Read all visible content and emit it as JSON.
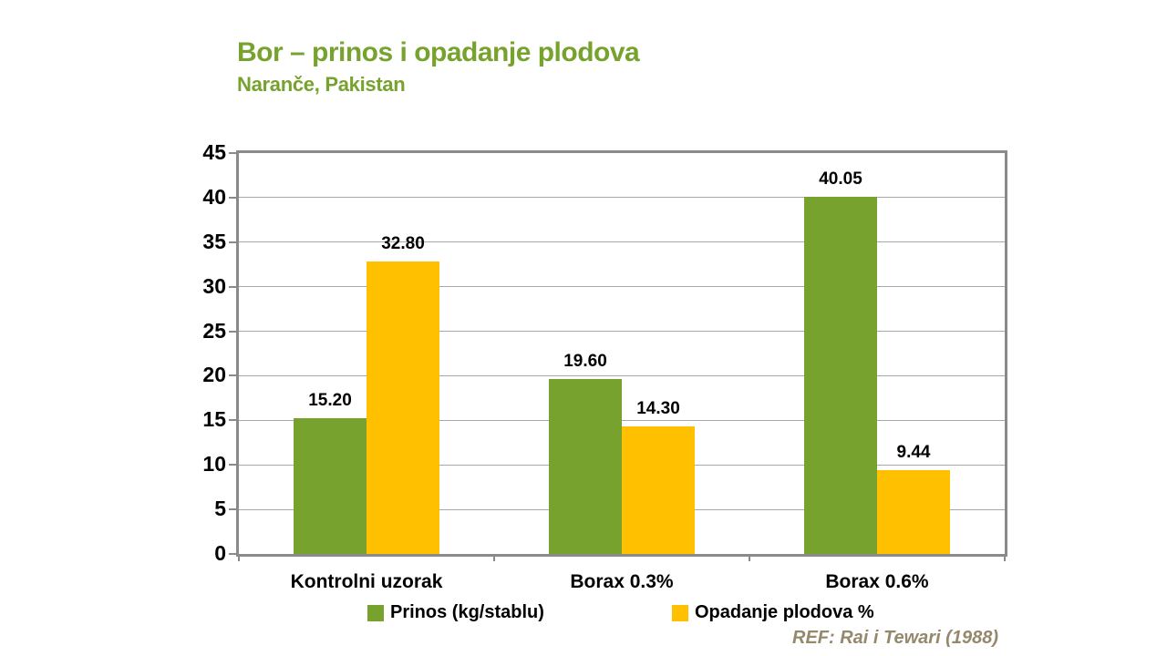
{
  "slide": {
    "title": "Bor – prinos i opadanje plodova",
    "subtitle": "Naranče, Pakistan",
    "reference": "REF: Rai i Tewari (1988)"
  },
  "colors": {
    "heading_green": "#76A22D",
    "series_green": "#76A22D",
    "series_yellow": "#FFC000",
    "reference_tan": "#95896C",
    "axis_line_gray": "#8A8A8A",
    "gridline_gray": "#A9A9A9",
    "label_black": "#000000"
  },
  "chart_data": {
    "type": "bar",
    "title": "Bor – prinos i opadanje plodova",
    "subtitle": "Naranče, Pakistan",
    "categories": [
      "Kontrolni uzorak",
      "Borax 0.3%",
      "Borax 0.6%"
    ],
    "series": [
      {
        "name": "Prinos (kg/stablu)",
        "color": "#76A22D",
        "values": [
          15.2,
          19.6,
          40.05
        ],
        "labels": [
          "15.20",
          "19.60",
          "40.05"
        ]
      },
      {
        "name": "Opadanje plodova %",
        "color": "#FFC000",
        "values": [
          32.8,
          14.3,
          9.44
        ],
        "labels": [
          "32.80",
          "14.30",
          "9.44"
        ]
      }
    ],
    "xlabel": "",
    "ylabel": "",
    "ylim": [
      0,
      45
    ],
    "ytick_step": 5,
    "yticks": [
      0,
      5,
      10,
      15,
      20,
      25,
      30,
      35,
      40,
      45
    ],
    "grid": true,
    "value_labels": true,
    "legend_position": "bottom"
  }
}
